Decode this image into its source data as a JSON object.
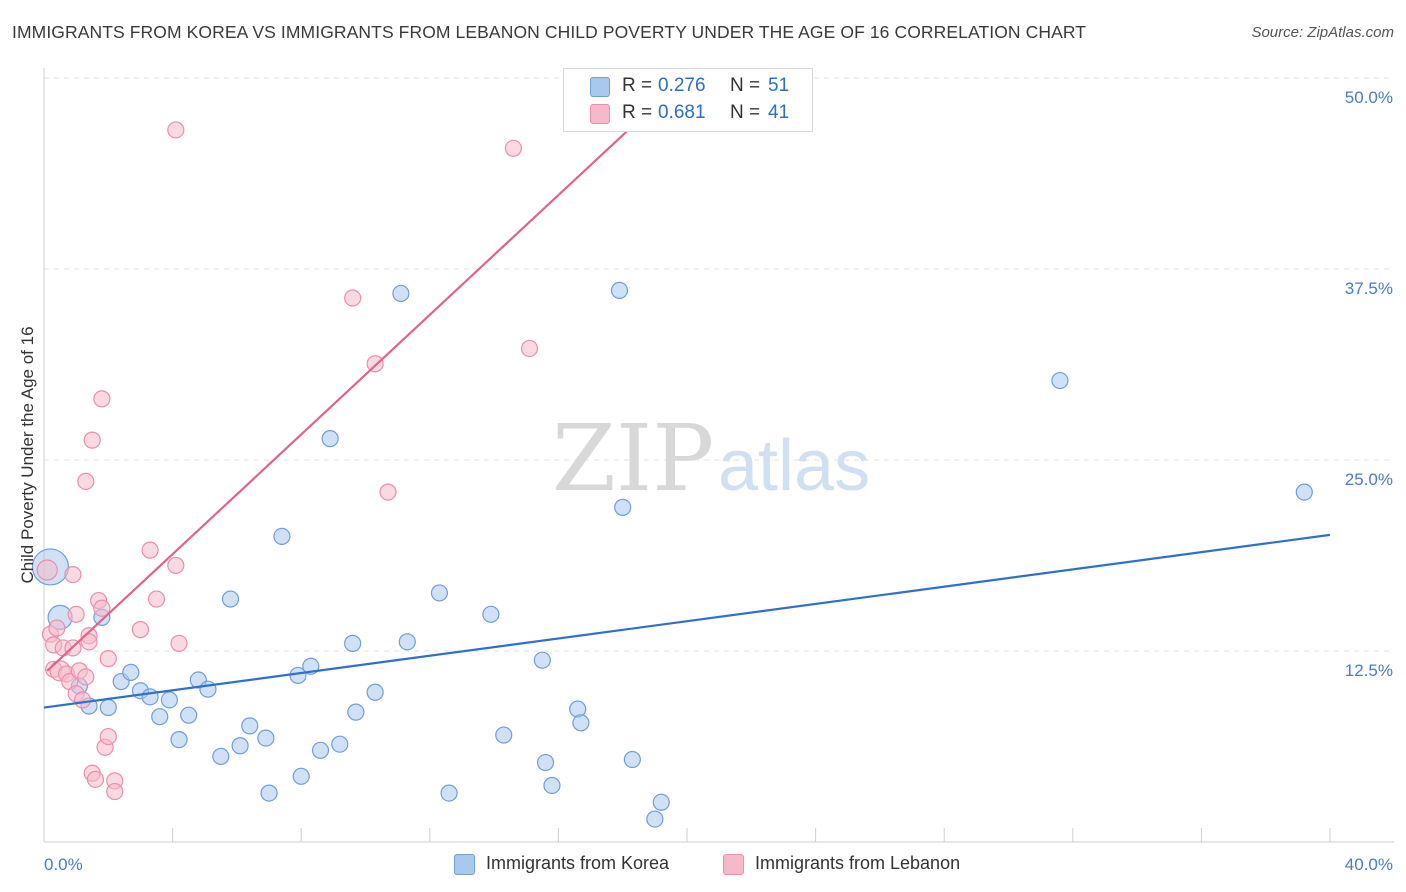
{
  "header": {
    "title": "IMMIGRANTS FROM KOREA VS IMMIGRANTS FROM LEBANON CHILD POVERTY UNDER THE AGE OF 16 CORRELATION CHART",
    "source": "Source: ZipAtlas.com"
  },
  "watermark": {
    "zip": "ZIP",
    "atlas": "atlas"
  },
  "legend_top": [
    {
      "r_label": "R = ",
      "r_value": "0.276",
      "n_label": "N = ",
      "n_value": "51"
    },
    {
      "r_label": "R = ",
      "r_value": "0.681",
      "n_label": "N = ",
      "n_value": "41"
    }
  ],
  "legend_bottom": [
    {
      "label": "Immigrants from Korea"
    },
    {
      "label": "Immigrants from Lebanon"
    }
  ],
  "colors": {
    "korea_fill": "#a9c8ee",
    "korea_stroke": "#6f9fd8",
    "korea_line": "#2f6fcf",
    "lebanon_fill": "#f6b9cb",
    "lebanon_stroke": "#ea8fab",
    "lebanon_line": "#e0638e",
    "grid": "#e2e2e2",
    "tick_text": "#4a7cc7"
  },
  "chart_data": {
    "type": "scatter",
    "title": "IMMIGRANTS FROM KOREA VS IMMIGRANTS FROM LEBANON CHILD POVERTY UNDER THE AGE OF 16 CORRELATION CHART",
    "xlabel": "",
    "ylabel": "Child Poverty Under the Age of 16",
    "xlim": [
      0,
      40
    ],
    "ylim": [
      0,
      50
    ],
    "x_ticks": [
      0,
      40
    ],
    "x_tick_labels": [
      "0.0%",
      "40.0%"
    ],
    "y_ticks": [
      12.5,
      25,
      37.5,
      50
    ],
    "y_tick_labels": [
      "12.5%",
      "25.0%",
      "37.5%",
      "50.0%"
    ],
    "grid": true,
    "legend_placement": "top-center",
    "series": [
      {
        "name": "Immigrants from Korea",
        "r": 0.276,
        "n": 51,
        "trend": {
          "x": [
            0,
            40
          ],
          "y": [
            8.8,
            20.1
          ]
        },
        "points": [
          {
            "x": 0.2,
            "y": 18.0,
            "s": 18
          },
          {
            "x": 0.5,
            "y": 14.7,
            "s": 12
          },
          {
            "x": 1.1,
            "y": 10.2,
            "s": 8
          },
          {
            "x": 1.4,
            "y": 8.9,
            "s": 8
          },
          {
            "x": 1.8,
            "y": 14.7,
            "s": 8
          },
          {
            "x": 2.0,
            "y": 8.8,
            "s": 8
          },
          {
            "x": 2.4,
            "y": 10.5,
            "s": 8
          },
          {
            "x": 2.7,
            "y": 11.1,
            "s": 8
          },
          {
            "x": 3.0,
            "y": 9.9,
            "s": 8
          },
          {
            "x": 3.3,
            "y": 9.5,
            "s": 8
          },
          {
            "x": 3.6,
            "y": 8.2,
            "s": 8
          },
          {
            "x": 3.9,
            "y": 9.3,
            "s": 8
          },
          {
            "x": 4.2,
            "y": 6.7,
            "s": 8
          },
          {
            "x": 4.5,
            "y": 8.3,
            "s": 8
          },
          {
            "x": 4.8,
            "y": 10.6,
            "s": 8
          },
          {
            "x": 5.1,
            "y": 10.0,
            "s": 8
          },
          {
            "x": 5.5,
            "y": 5.6,
            "s": 8
          },
          {
            "x": 5.8,
            "y": 15.9,
            "s": 8
          },
          {
            "x": 6.1,
            "y": 6.3,
            "s": 8
          },
          {
            "x": 6.4,
            "y": 7.6,
            "s": 8
          },
          {
            "x": 6.9,
            "y": 6.8,
            "s": 8
          },
          {
            "x": 7.0,
            "y": 3.2,
            "s": 8
          },
          {
            "x": 7.4,
            "y": 20.0,
            "s": 8
          },
          {
            "x": 7.9,
            "y": 10.9,
            "s": 8
          },
          {
            "x": 8.0,
            "y": 4.3,
            "s": 8
          },
          {
            "x": 8.3,
            "y": 11.5,
            "s": 8
          },
          {
            "x": 8.6,
            "y": 6.0,
            "s": 8
          },
          {
            "x": 8.9,
            "y": 26.4,
            "s": 8
          },
          {
            "x": 9.2,
            "y": 6.4,
            "s": 8
          },
          {
            "x": 9.6,
            "y": 13.0,
            "s": 8
          },
          {
            "x": 9.7,
            "y": 8.5,
            "s": 8
          },
          {
            "x": 10.3,
            "y": 9.8,
            "s": 8
          },
          {
            "x": 11.1,
            "y": 35.9,
            "s": 8
          },
          {
            "x": 11.3,
            "y": 13.1,
            "s": 8
          },
          {
            "x": 12.3,
            "y": 16.3,
            "s": 8
          },
          {
            "x": 12.6,
            "y": 3.2,
            "s": 8
          },
          {
            "x": 13.9,
            "y": 14.9,
            "s": 8
          },
          {
            "x": 14.3,
            "y": 7.0,
            "s": 8
          },
          {
            "x": 15.5,
            "y": 11.9,
            "s": 8
          },
          {
            "x": 15.6,
            "y": 5.2,
            "s": 8
          },
          {
            "x": 15.8,
            "y": 3.7,
            "s": 8
          },
          {
            "x": 16.6,
            "y": 8.7,
            "s": 8
          },
          {
            "x": 17.9,
            "y": 36.1,
            "s": 8
          },
          {
            "x": 18.0,
            "y": 21.9,
            "s": 8
          },
          {
            "x": 18.3,
            "y": 5.4,
            "s": 8
          },
          {
            "x": 19.0,
            "y": 1.5,
            "s": 8
          },
          {
            "x": 19.2,
            "y": 2.6,
            "s": 8
          },
          {
            "x": 31.6,
            "y": 30.2,
            "s": 8
          },
          {
            "x": 39.2,
            "y": 22.9,
            "s": 8
          },
          {
            "x": 16.7,
            "y": 7.8,
            "s": 8
          },
          {
            "x": 11.0,
            "y": 4.0,
            "s": 0
          }
        ]
      },
      {
        "name": "Immigrants from Lebanon",
        "r": 0.681,
        "n": 41,
        "trend": {
          "x": [
            0.1,
            19.3
          ],
          "y": [
            11.2,
            48.8
          ]
        },
        "points": [
          {
            "x": 0.1,
            "y": 17.8,
            "s": 10
          },
          {
            "x": 0.2,
            "y": 13.6,
            "s": 8
          },
          {
            "x": 0.3,
            "y": 12.9,
            "s": 8
          },
          {
            "x": 0.3,
            "y": 11.3,
            "s": 8
          },
          {
            "x": 0.5,
            "y": 11.2,
            "s": 10
          },
          {
            "x": 0.6,
            "y": 12.7,
            "s": 8
          },
          {
            "x": 0.7,
            "y": 11.0,
            "s": 8
          },
          {
            "x": 0.8,
            "y": 10.5,
            "s": 8
          },
          {
            "x": 0.9,
            "y": 17.5,
            "s": 8
          },
          {
            "x": 1.0,
            "y": 9.7,
            "s": 8
          },
          {
            "x": 1.0,
            "y": 14.9,
            "s": 8
          },
          {
            "x": 1.1,
            "y": 11.2,
            "s": 8
          },
          {
            "x": 1.2,
            "y": 9.3,
            "s": 8
          },
          {
            "x": 1.3,
            "y": 23.6,
            "s": 8
          },
          {
            "x": 1.4,
            "y": 13.5,
            "s": 8
          },
          {
            "x": 1.4,
            "y": 13.1,
            "s": 8
          },
          {
            "x": 1.5,
            "y": 26.3,
            "s": 8
          },
          {
            "x": 1.5,
            "y": 4.5,
            "s": 8
          },
          {
            "x": 1.6,
            "y": 4.1,
            "s": 8
          },
          {
            "x": 1.7,
            "y": 15.8,
            "s": 8
          },
          {
            "x": 1.8,
            "y": 29.0,
            "s": 8
          },
          {
            "x": 1.8,
            "y": 15.3,
            "s": 8
          },
          {
            "x": 1.9,
            "y": 6.2,
            "s": 8
          },
          {
            "x": 2.0,
            "y": 12.0,
            "s": 8
          },
          {
            "x": 2.0,
            "y": 6.9,
            "s": 8
          },
          {
            "x": 2.2,
            "y": 4.0,
            "s": 8
          },
          {
            "x": 2.2,
            "y": 3.3,
            "s": 8
          },
          {
            "x": 3.0,
            "y": 13.9,
            "s": 8
          },
          {
            "x": 3.3,
            "y": 19.1,
            "s": 8
          },
          {
            "x": 3.5,
            "y": 15.9,
            "s": 8
          },
          {
            "x": 4.1,
            "y": 18.1,
            "s": 8
          },
          {
            "x": 4.2,
            "y": 13.0,
            "s": 8
          },
          {
            "x": 4.1,
            "y": 46.6,
            "s": 8
          },
          {
            "x": 9.6,
            "y": 35.6,
            "s": 8
          },
          {
            "x": 10.3,
            "y": 31.3,
            "s": 8
          },
          {
            "x": 10.7,
            "y": 22.9,
            "s": 8
          },
          {
            "x": 14.6,
            "y": 45.4,
            "s": 8
          },
          {
            "x": 15.1,
            "y": 32.3,
            "s": 8
          },
          {
            "x": 0.4,
            "y": 14.0,
            "s": 8
          },
          {
            "x": 0.9,
            "y": 12.7,
            "s": 8
          },
          {
            "x": 1.3,
            "y": 10.8,
            "s": 8
          }
        ]
      }
    ]
  }
}
